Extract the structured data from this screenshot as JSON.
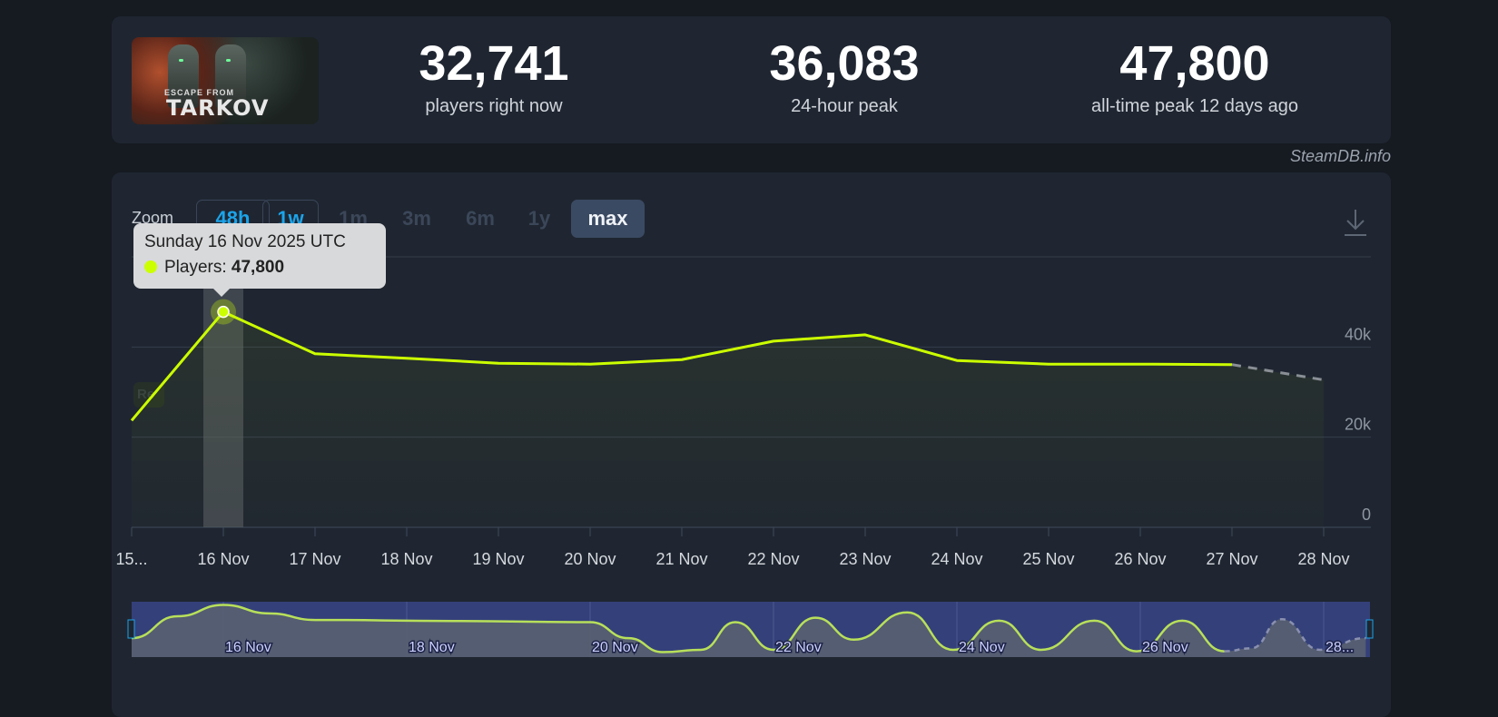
{
  "header": {
    "logo": {
      "text_line1": "ESCAPE FROM",
      "text_line2": "TARKOV"
    },
    "stats": [
      {
        "value": "32,741",
        "label": "players right now"
      },
      {
        "value": "36,083",
        "label": "24-hour peak"
      },
      {
        "value": "47,800",
        "label": "all-time peak 12 days ago"
      }
    ]
  },
  "credit": "SteamDB.info",
  "zoom": {
    "label": "Zoom",
    "options": [
      "48h",
      "1w",
      "1m",
      "3m",
      "6m",
      "1y",
      "max"
    ],
    "selected": "max",
    "download_icon": "download-icon"
  },
  "tooltip": {
    "date": "Sunday 16 Nov 2025 UTC",
    "series_label": "Players:",
    "value": "47,800"
  },
  "reset_label": "Re",
  "colors": {
    "line": "#ccff00",
    "accent": "#1ba4ea",
    "forecast": "#8a8f96",
    "navigator_bg": "#34407a"
  },
  "chart_data": {
    "type": "line",
    "ylim": [
      0,
      60000
    ],
    "yticks": [
      {
        "v": 0,
        "label": "0"
      },
      {
        "v": 20000,
        "label": "20k"
      },
      {
        "v": 40000,
        "label": "40k"
      }
    ],
    "grid": true,
    "xticks": [
      {
        "date": "2025-11-15",
        "label": "15..."
      },
      {
        "date": "2025-11-16",
        "label": "16 Nov"
      },
      {
        "date": "2025-11-17",
        "label": "17 Nov"
      },
      {
        "date": "2025-11-18",
        "label": "18 Nov"
      },
      {
        "date": "2025-11-19",
        "label": "19 Nov"
      },
      {
        "date": "2025-11-20",
        "label": "20 Nov"
      },
      {
        "date": "2025-11-21",
        "label": "21 Nov"
      },
      {
        "date": "2025-11-22",
        "label": "22 Nov"
      },
      {
        "date": "2025-11-23",
        "label": "23 Nov"
      },
      {
        "date": "2025-11-24",
        "label": "24 Nov"
      },
      {
        "date": "2025-11-25",
        "label": "25 Nov"
      },
      {
        "date": "2025-11-26",
        "label": "26 Nov"
      },
      {
        "date": "2025-11-27",
        "label": "27 Nov"
      },
      {
        "date": "2025-11-28",
        "label": "28 Nov"
      }
    ],
    "series": [
      {
        "name": "Players",
        "points": [
          [
            "2025-11-15",
            23700
          ],
          [
            "2025-11-16",
            47800
          ],
          [
            "2025-11-17",
            38500
          ],
          [
            "2025-11-18",
            37500
          ],
          [
            "2025-11-19",
            36400
          ],
          [
            "2025-11-20",
            36200
          ],
          [
            "2025-11-21",
            37200
          ],
          [
            "2025-11-22",
            41300
          ],
          [
            "2025-11-23",
            42700
          ],
          [
            "2025-11-24",
            37000
          ],
          [
            "2025-11-25",
            36200
          ],
          [
            "2025-11-26",
            36200
          ],
          [
            "2025-11-27",
            36100
          ]
        ],
        "forecast": [
          [
            "2025-11-27",
            36100
          ],
          [
            "2025-11-28",
            32700
          ]
        ],
        "highlight": "2025-11-16"
      }
    ],
    "navigator": {
      "ylim": [
        12000,
        50000
      ],
      "labels": [
        {
          "date": "2025-11-16",
          "label": "16 Nov"
        },
        {
          "date": "2025-11-18",
          "label": "18 Nov"
        },
        {
          "date": "2025-11-20",
          "label": "20 Nov"
        },
        {
          "date": "2025-11-22",
          "label": "22 Nov"
        },
        {
          "date": "2025-11-24",
          "label": "24 Nov"
        },
        {
          "date": "2025-11-26",
          "label": "26 Nov"
        },
        {
          "date": "2025-11-28",
          "label": "28..."
        }
      ],
      "points": [
        [
          "2025-11-15 00:00",
          25000
        ],
        [
          "2025-11-15 12:00",
          40000
        ],
        [
          "2025-11-16 00:00",
          47800
        ],
        [
          "2025-11-16 12:00",
          42000
        ],
        [
          "2025-11-17 00:00",
          37500
        ],
        [
          "2025-11-18 12:00",
          36800
        ],
        [
          "2025-11-20 00:00",
          36000
        ],
        [
          "2025-11-20 10:00",
          25000
        ],
        [
          "2025-11-20 19:00",
          15400
        ],
        [
          "2025-11-21 05:00",
          17000
        ],
        [
          "2025-11-21 14:00",
          36000
        ],
        [
          "2025-11-22 00:00",
          17000
        ],
        [
          "2025-11-22 11:00",
          39000
        ],
        [
          "2025-11-22 21:00",
          24000
        ],
        [
          "2025-11-23 11:00",
          42700
        ],
        [
          "2025-11-23 23:00",
          17000
        ],
        [
          "2025-11-24 11:00",
          37000
        ],
        [
          "2025-11-24 22:00",
          17000
        ],
        [
          "2025-11-25 12:00",
          37000
        ],
        [
          "2025-11-25 23:00",
          16000
        ],
        [
          "2025-11-26 11:00",
          37000
        ],
        [
          "2025-11-26 22:00",
          16000
        ]
      ],
      "forecast": [
        [
          "2025-11-26 22:00",
          16000
        ],
        [
          "2025-11-27 05:00",
          18000
        ],
        [
          "2025-11-27 13:00",
          38000
        ],
        [
          "2025-11-27 23:00",
          17000
        ],
        [
          "2025-11-28 11:00",
          25000
        ]
      ]
    }
  }
}
